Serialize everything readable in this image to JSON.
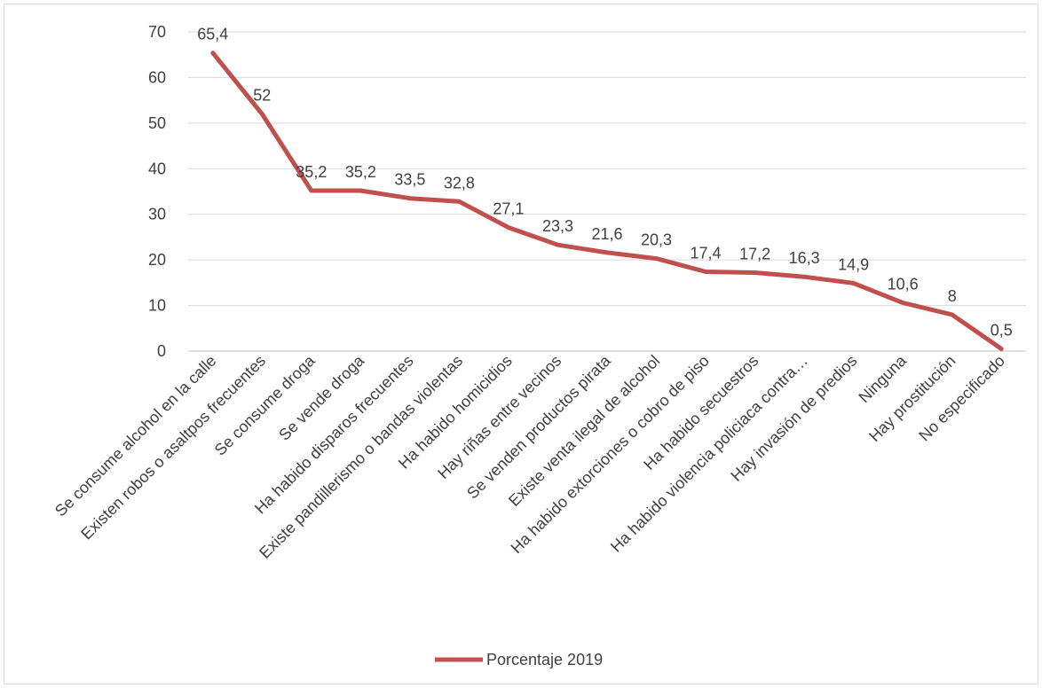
{
  "chart_data": {
    "type": "line",
    "title": "",
    "xlabel": "",
    "ylabel": "",
    "ylim": [
      0,
      70
    ],
    "yticks": [
      0,
      10,
      20,
      30,
      40,
      50,
      60,
      70
    ],
    "grid": true,
    "legend_position": "bottom",
    "categories": [
      "Se consume alcohol en la calle",
      "Existen robos o asaltpos frecuentes",
      "Se consume droga",
      "Se vende droga",
      "Ha habido disparos frecuentes",
      "Existe pandillerismo o bandas violentas",
      "Ha habido homicidios",
      "Hay riñas entre vecinos",
      "Se venden productos pirata",
      "Existe venta ilegal de alcohol",
      "Ha habido extorciones o cobro de piso",
      "Ha habido secuestros",
      "Ha habido violencia policiaca contra…",
      "Hay invasión de predios",
      "Ninguna",
      "Hay prostitución",
      "No especificado"
    ],
    "series": [
      {
        "name": "Porcentaje 2019",
        "color": "#c0504d",
        "values": [
          65.4,
          52,
          35.2,
          35.2,
          33.5,
          32.8,
          27.1,
          23.3,
          21.6,
          20.3,
          17.4,
          17.2,
          16.3,
          14.9,
          10.6,
          8,
          0.5
        ],
        "labels": [
          "65,4",
          "52",
          "35,2",
          "35,2",
          "33,5",
          "32,8",
          "27,1",
          "23,3",
          "21,6",
          "20,3",
          "17,4",
          "17,2",
          "16,3",
          "14,9",
          "10,6",
          "8",
          "0,5"
        ]
      }
    ]
  }
}
